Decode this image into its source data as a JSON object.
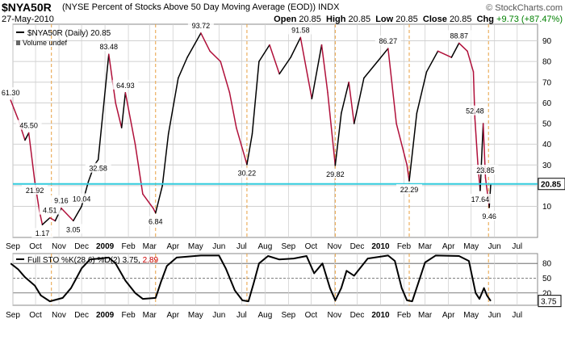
{
  "header": {
    "symbol": "$NYA50R",
    "description": "(NYSE Percent of Stocks Above 50 Day Moving Average (EOD))",
    "exchange": "INDX",
    "date": "27-May-2010",
    "brand": "© StockCharts.com",
    "open_label": "Open",
    "open": "20.85",
    "high_label": "High",
    "high": "20.85",
    "low_label": "Low",
    "low": "20.85",
    "close_label": "Close",
    "close": "20.85",
    "chg_label": "Chg",
    "chg": "+9.73 (+87.47%)"
  },
  "colors": {
    "up_line": "#000000",
    "down_line": "#b0103a",
    "last_value_line": "#33ccdd",
    "event_line": "#e8a040",
    "grid": "#d0d0d0",
    "chg_positive": "#008000",
    "pct_d": "#cc0000"
  },
  "chart_data": [
    {
      "type": "line",
      "legend": "$NYA50R (Daily) 20.85",
      "legend_note": "Volume undef",
      "ylim": [
        -5,
        98
      ],
      "yticks": [
        10,
        20,
        30,
        40,
        50,
        60,
        70,
        80,
        90
      ],
      "last_value": 20.85,
      "last_value_label": "20.85",
      "xlim": [
        "2008-09-01",
        "2010-07-28"
      ],
      "x_tick_labels": [
        {
          "label": "Sep",
          "date": "2008-09-01",
          "bold": false
        },
        {
          "label": "Oct",
          "date": "2008-10-01",
          "bold": false
        },
        {
          "label": "Nov",
          "date": "2008-11-01",
          "bold": false
        },
        {
          "label": "Dec",
          "date": "2008-12-01",
          "bold": false
        },
        {
          "label": "2009",
          "date": "2009-01-01",
          "bold": true
        },
        {
          "label": "Feb",
          "date": "2009-02-01",
          "bold": false
        },
        {
          "label": "Mar",
          "date": "2009-03-01",
          "bold": false
        },
        {
          "label": "Apr",
          "date": "2009-04-01",
          "bold": false
        },
        {
          "label": "May",
          "date": "2009-05-01",
          "bold": false
        },
        {
          "label": "Jun",
          "date": "2009-06-01",
          "bold": false
        },
        {
          "label": "Jul",
          "date": "2009-07-01",
          "bold": false
        },
        {
          "label": "Aug",
          "date": "2009-08-01",
          "bold": false
        },
        {
          "label": "Sep",
          "date": "2009-09-01",
          "bold": false
        },
        {
          "label": "Oct",
          "date": "2009-10-01",
          "bold": false
        },
        {
          "label": "Nov",
          "date": "2009-11-01",
          "bold": false
        },
        {
          "label": "Dec",
          "date": "2009-12-01",
          "bold": false
        },
        {
          "label": "2010",
          "date": "2010-01-01",
          "bold": true
        },
        {
          "label": "Feb",
          "date": "2010-02-01",
          "bold": false
        },
        {
          "label": "Mar",
          "date": "2010-03-01",
          "bold": false
        },
        {
          "label": "Apr",
          "date": "2010-04-01",
          "bold": false
        },
        {
          "label": "May",
          "date": "2010-05-01",
          "bold": false
        },
        {
          "label": "Jun",
          "date": "2010-06-01",
          "bold": false
        },
        {
          "label": "Jul",
          "date": "2010-07-01",
          "bold": false
        }
      ],
      "event_lines": [
        "2008-10-22",
        "2009-03-09",
        "2009-07-08",
        "2009-11-02",
        "2010-02-08",
        "2010-05-24"
      ],
      "points": [
        {
          "date": "2008-08-29",
          "value": 61.3
        },
        {
          "date": "2008-09-08",
          "value": 52
        },
        {
          "date": "2008-09-17",
          "value": 42
        },
        {
          "date": "2008-09-22",
          "value": 45.5
        },
        {
          "date": "2008-09-30",
          "value": 21.92
        },
        {
          "date": "2008-10-06",
          "value": 8
        },
        {
          "date": "2008-10-10",
          "value": 1.17
        },
        {
          "date": "2008-10-20",
          "value": 4.51
        },
        {
          "date": "2008-10-27",
          "value": 3
        },
        {
          "date": "2008-11-04",
          "value": 9.16
        },
        {
          "date": "2008-11-20",
          "value": 3.05
        },
        {
          "date": "2008-12-01",
          "value": 10.04
        },
        {
          "date": "2008-12-10",
          "value": 22
        },
        {
          "date": "2008-12-18",
          "value": 30
        },
        {
          "date": "2008-12-23",
          "value": 32.58
        },
        {
          "date": "2009-01-06",
          "value": 83.48
        },
        {
          "date": "2009-01-15",
          "value": 60
        },
        {
          "date": "2009-01-23",
          "value": 48
        },
        {
          "date": "2009-01-28",
          "value": 64.93
        },
        {
          "date": "2009-02-10",
          "value": 40
        },
        {
          "date": "2009-02-20",
          "value": 16
        },
        {
          "date": "2009-03-06",
          "value": 9
        },
        {
          "date": "2009-03-09",
          "value": 6.84
        },
        {
          "date": "2009-03-18",
          "value": 20
        },
        {
          "date": "2009-03-26",
          "value": 45
        },
        {
          "date": "2009-04-08",
          "value": 72
        },
        {
          "date": "2009-04-20",
          "value": 82
        },
        {
          "date": "2009-05-08",
          "value": 93.72
        },
        {
          "date": "2009-05-20",
          "value": 85
        },
        {
          "date": "2009-06-03",
          "value": 80
        },
        {
          "date": "2009-06-15",
          "value": 65
        },
        {
          "date": "2009-06-24",
          "value": 48
        },
        {
          "date": "2009-07-08",
          "value": 30.22
        },
        {
          "date": "2009-07-15",
          "value": 45
        },
        {
          "date": "2009-07-24",
          "value": 80
        },
        {
          "date": "2009-08-07",
          "value": 88
        },
        {
          "date": "2009-08-20",
          "value": 74
        },
        {
          "date": "2009-09-04",
          "value": 82
        },
        {
          "date": "2009-09-17",
          "value": 91.58
        },
        {
          "date": "2009-10-02",
          "value": 62
        },
        {
          "date": "2009-10-15",
          "value": 88
        },
        {
          "date": "2009-10-23",
          "value": 65
        },
        {
          "date": "2009-11-02",
          "value": 29.82
        },
        {
          "date": "2009-11-10",
          "value": 55
        },
        {
          "date": "2009-11-20",
          "value": 70
        },
        {
          "date": "2009-11-27",
          "value": 50
        },
        {
          "date": "2009-12-10",
          "value": 72
        },
        {
          "date": "2009-12-28",
          "value": 80
        },
        {
          "date": "2010-01-11",
          "value": 86.27
        },
        {
          "date": "2010-01-22",
          "value": 50
        },
        {
          "date": "2010-02-05",
          "value": 30
        },
        {
          "date": "2010-02-08",
          "value": 22.29
        },
        {
          "date": "2010-02-18",
          "value": 55
        },
        {
          "date": "2010-03-03",
          "value": 75
        },
        {
          "date": "2010-03-18",
          "value": 85
        },
        {
          "date": "2010-04-05",
          "value": 82
        },
        {
          "date": "2010-04-15",
          "value": 88.87
        },
        {
          "date": "2010-04-26",
          "value": 85
        },
        {
          "date": "2010-05-04",
          "value": 75
        },
        {
          "date": "2010-05-06",
          "value": 52.48
        },
        {
          "date": "2010-05-10",
          "value": 30
        },
        {
          "date": "2010-05-13",
          "value": 17.64
        },
        {
          "date": "2010-05-17",
          "value": 50
        },
        {
          "date": "2010-05-20",
          "value": 23.85
        },
        {
          "date": "2010-05-25",
          "value": 9.46
        },
        {
          "date": "2010-05-27",
          "value": 20.85
        }
      ],
      "annotations": [
        {
          "label": "61.30",
          "date": "2008-08-29",
          "value": 61.3,
          "pos": "above"
        },
        {
          "label": "45.50",
          "date": "2008-09-22",
          "value": 45.5,
          "pos": "above"
        },
        {
          "label": "21.92",
          "date": "2008-09-30",
          "value": 21.92,
          "pos": "below"
        },
        {
          "label": "1.17",
          "date": "2008-10-10",
          "value": 1.17,
          "pos": "below"
        },
        {
          "label": "4.51",
          "date": "2008-10-20",
          "value": 4.51,
          "pos": "above"
        },
        {
          "label": "9.16",
          "date": "2008-11-04",
          "value": 9.16,
          "pos": "above"
        },
        {
          "label": "3.05",
          "date": "2008-11-20",
          "value": 3.05,
          "pos": "below"
        },
        {
          "label": "10.04",
          "date": "2008-12-01",
          "value": 10.04,
          "pos": "above"
        },
        {
          "label": "32.58",
          "date": "2008-12-23",
          "value": 32.58,
          "pos": "below"
        },
        {
          "label": "83.48",
          "date": "2009-01-06",
          "value": 83.48,
          "pos": "above"
        },
        {
          "label": "64.93",
          "date": "2009-01-28",
          "value": 64.93,
          "pos": "above"
        },
        {
          "label": "6.84",
          "date": "2009-03-09",
          "value": 6.84,
          "pos": "below"
        },
        {
          "label": "93.72",
          "date": "2009-05-08",
          "value": 93.72,
          "pos": "above"
        },
        {
          "label": "30.22",
          "date": "2009-07-08",
          "value": 30.22,
          "pos": "below"
        },
        {
          "label": "91.58",
          "date": "2009-09-17",
          "value": 91.58,
          "pos": "above"
        },
        {
          "label": "29.82",
          "date": "2009-11-02",
          "value": 29.82,
          "pos": "below"
        },
        {
          "label": "86.27",
          "date": "2010-01-11",
          "value": 86.27,
          "pos": "above"
        },
        {
          "label": "22.29",
          "date": "2010-02-08",
          "value": 22.29,
          "pos": "below"
        },
        {
          "label": "88.87",
          "date": "2010-04-15",
          "value": 88.87,
          "pos": "above"
        },
        {
          "label": "52.48",
          "date": "2010-05-06",
          "value": 52.48,
          "pos": "above"
        },
        {
          "label": "17.64",
          "date": "2010-05-13",
          "value": 17.64,
          "pos": "below"
        },
        {
          "label": "23.85",
          "date": "2010-05-20",
          "value": 23.85,
          "pos": "above"
        },
        {
          "label": "9.46",
          "date": "2010-05-25",
          "value": 9.46,
          "pos": "below"
        }
      ]
    },
    {
      "type": "line",
      "legend_prefix": "Full STO %K(28,6) %D(2) 3.75, ",
      "legend_d": "2.89",
      "ylim": [
        -5,
        100
      ],
      "yticks": [
        20,
        50,
        80
      ],
      "reference_lines": [
        20,
        50,
        80
      ],
      "last_value": 3.75,
      "last_value_label": "3.75",
      "points": [
        {
          "date": "2008-08-29",
          "value": 80
        },
        {
          "date": "2008-09-08",
          "value": 68
        },
        {
          "date": "2008-09-17",
          "value": 52
        },
        {
          "date": "2008-09-30",
          "value": 35
        },
        {
          "date": "2008-10-08",
          "value": 15
        },
        {
          "date": "2008-10-20",
          "value": 3
        },
        {
          "date": "2008-11-06",
          "value": 10
        },
        {
          "date": "2008-11-17",
          "value": 30
        },
        {
          "date": "2008-11-24",
          "value": 50
        },
        {
          "date": "2008-12-01",
          "value": 70
        },
        {
          "date": "2008-12-12",
          "value": 88
        },
        {
          "date": "2009-01-06",
          "value": 92
        },
        {
          "date": "2009-01-15",
          "value": 80
        },
        {
          "date": "2009-01-28",
          "value": 45
        },
        {
          "date": "2009-02-10",
          "value": 20
        },
        {
          "date": "2009-02-20",
          "value": 8
        },
        {
          "date": "2009-03-09",
          "value": 10
        },
        {
          "date": "2009-03-16",
          "value": 42
        },
        {
          "date": "2009-03-24",
          "value": 75
        },
        {
          "date": "2009-04-06",
          "value": 92
        },
        {
          "date": "2009-05-08",
          "value": 96
        },
        {
          "date": "2009-06-01",
          "value": 96
        },
        {
          "date": "2009-06-10",
          "value": 70
        },
        {
          "date": "2009-06-22",
          "value": 25
        },
        {
          "date": "2009-07-02",
          "value": 5
        },
        {
          "date": "2009-07-10",
          "value": 3
        },
        {
          "date": "2009-07-17",
          "value": 40
        },
        {
          "date": "2009-07-24",
          "value": 80
        },
        {
          "date": "2009-08-05",
          "value": 95
        },
        {
          "date": "2009-08-20",
          "value": 88
        },
        {
          "date": "2009-09-08",
          "value": 90
        },
        {
          "date": "2009-09-25",
          "value": 95
        },
        {
          "date": "2009-10-05",
          "value": 60
        },
        {
          "date": "2009-10-16",
          "value": 80
        },
        {
          "date": "2009-10-26",
          "value": 30
        },
        {
          "date": "2009-11-02",
          "value": 5
        },
        {
          "date": "2009-11-10",
          "value": 30
        },
        {
          "date": "2009-11-17",
          "value": 65
        },
        {
          "date": "2009-11-27",
          "value": 55
        },
        {
          "date": "2009-12-15",
          "value": 90
        },
        {
          "date": "2010-01-11",
          "value": 96
        },
        {
          "date": "2010-01-20",
          "value": 85
        },
        {
          "date": "2010-01-29",
          "value": 30
        },
        {
          "date": "2010-02-05",
          "value": 5
        },
        {
          "date": "2010-02-12",
          "value": 3
        },
        {
          "date": "2010-02-20",
          "value": 40
        },
        {
          "date": "2010-03-01",
          "value": 82
        },
        {
          "date": "2010-03-15",
          "value": 96
        },
        {
          "date": "2010-04-15",
          "value": 95
        },
        {
          "date": "2010-04-28",
          "value": 85
        },
        {
          "date": "2010-05-07",
          "value": 20
        },
        {
          "date": "2010-05-12",
          "value": 8
        },
        {
          "date": "2010-05-18",
          "value": 30
        },
        {
          "date": "2010-05-22",
          "value": 15
        },
        {
          "date": "2010-05-27",
          "value": 3.75
        }
      ]
    }
  ]
}
